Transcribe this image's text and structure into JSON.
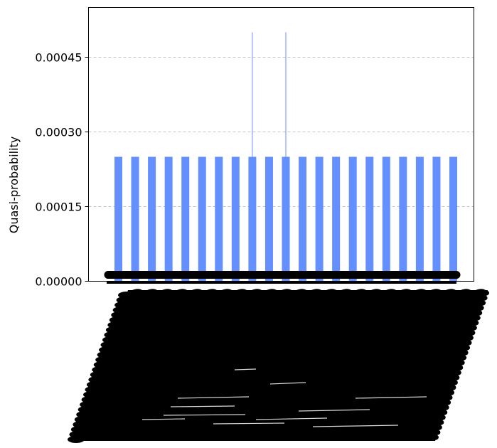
{
  "chart_data": {
    "type": "bar",
    "title": "",
    "xlabel": "",
    "ylabel": "Quasi-probability",
    "ylim": [
      0,
      0.00055
    ],
    "yticks": [
      0,
      0.00015,
      0.0003,
      0.00045
    ],
    "ytick_labels": [
      "0.00000",
      "0.00015",
      "0.00030",
      "0.00045"
    ],
    "grid": true,
    "bar_color": "#648fff",
    "n_visible_bars": 21,
    "values": [
      0.00025,
      0.00025,
      0.00025,
      0.00025,
      0.00025,
      0.00025,
      0.00025,
      0.00025,
      0.00025,
      0.00025,
      0.00025,
      0.00025,
      0.00025,
      0.00025,
      0.00025,
      0.00025,
      0.00025,
      0.00025,
      0.00025,
      0.00025,
      0.00025
    ],
    "spikes": [
      {
        "bar_index": 8,
        "value": 0.0005
      },
      {
        "bar_index": 10,
        "value": 0.0005
      }
    ],
    "xtick_note": "thousands of overlapping rotated x tick labels render as solid black"
  }
}
